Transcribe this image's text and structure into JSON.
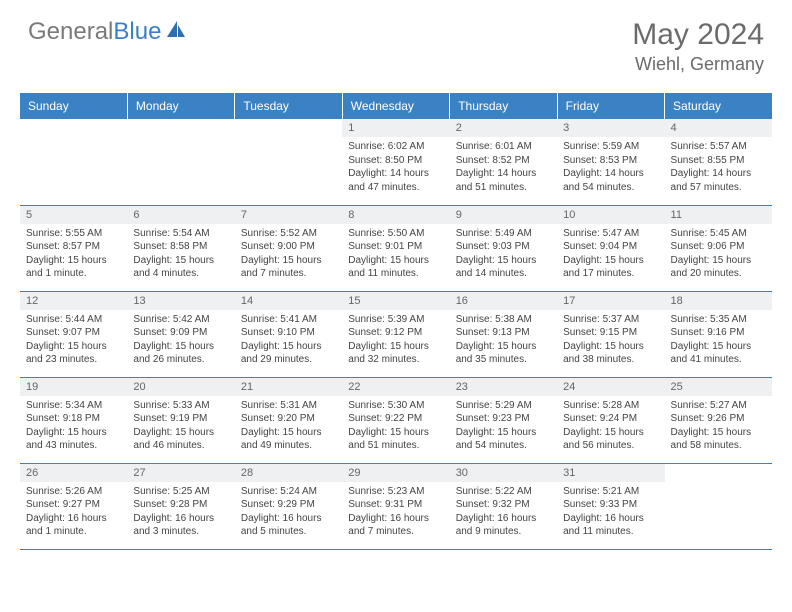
{
  "brand": {
    "part1": "General",
    "part2": "Blue"
  },
  "title": "May 2024",
  "location": "Wiehl, Germany",
  "colors": {
    "header_bg": "#3b82c4",
    "header_text": "#ffffff",
    "daynum_bg": "#eef0f2",
    "border": "#3b82c4",
    "body_text": "#444444",
    "title_text": "#6b6b6b"
  },
  "weekdays": [
    "Sunday",
    "Monday",
    "Tuesday",
    "Wednesday",
    "Thursday",
    "Friday",
    "Saturday"
  ],
  "startOffset": 3,
  "days": [
    {
      "n": 1,
      "sr": "6:02 AM",
      "ss": "8:50 PM",
      "dl": "14 hours and 47 minutes."
    },
    {
      "n": 2,
      "sr": "6:01 AM",
      "ss": "8:52 PM",
      "dl": "14 hours and 51 minutes."
    },
    {
      "n": 3,
      "sr": "5:59 AM",
      "ss": "8:53 PM",
      "dl": "14 hours and 54 minutes."
    },
    {
      "n": 4,
      "sr": "5:57 AM",
      "ss": "8:55 PM",
      "dl": "14 hours and 57 minutes."
    },
    {
      "n": 5,
      "sr": "5:55 AM",
      "ss": "8:57 PM",
      "dl": "15 hours and 1 minute."
    },
    {
      "n": 6,
      "sr": "5:54 AM",
      "ss": "8:58 PM",
      "dl": "15 hours and 4 minutes."
    },
    {
      "n": 7,
      "sr": "5:52 AM",
      "ss": "9:00 PM",
      "dl": "15 hours and 7 minutes."
    },
    {
      "n": 8,
      "sr": "5:50 AM",
      "ss": "9:01 PM",
      "dl": "15 hours and 11 minutes."
    },
    {
      "n": 9,
      "sr": "5:49 AM",
      "ss": "9:03 PM",
      "dl": "15 hours and 14 minutes."
    },
    {
      "n": 10,
      "sr": "5:47 AM",
      "ss": "9:04 PM",
      "dl": "15 hours and 17 minutes."
    },
    {
      "n": 11,
      "sr": "5:45 AM",
      "ss": "9:06 PM",
      "dl": "15 hours and 20 minutes."
    },
    {
      "n": 12,
      "sr": "5:44 AM",
      "ss": "9:07 PM",
      "dl": "15 hours and 23 minutes."
    },
    {
      "n": 13,
      "sr": "5:42 AM",
      "ss": "9:09 PM",
      "dl": "15 hours and 26 minutes."
    },
    {
      "n": 14,
      "sr": "5:41 AM",
      "ss": "9:10 PM",
      "dl": "15 hours and 29 minutes."
    },
    {
      "n": 15,
      "sr": "5:39 AM",
      "ss": "9:12 PM",
      "dl": "15 hours and 32 minutes."
    },
    {
      "n": 16,
      "sr": "5:38 AM",
      "ss": "9:13 PM",
      "dl": "15 hours and 35 minutes."
    },
    {
      "n": 17,
      "sr": "5:37 AM",
      "ss": "9:15 PM",
      "dl": "15 hours and 38 minutes."
    },
    {
      "n": 18,
      "sr": "5:35 AM",
      "ss": "9:16 PM",
      "dl": "15 hours and 41 minutes."
    },
    {
      "n": 19,
      "sr": "5:34 AM",
      "ss": "9:18 PM",
      "dl": "15 hours and 43 minutes."
    },
    {
      "n": 20,
      "sr": "5:33 AM",
      "ss": "9:19 PM",
      "dl": "15 hours and 46 minutes."
    },
    {
      "n": 21,
      "sr": "5:31 AM",
      "ss": "9:20 PM",
      "dl": "15 hours and 49 minutes."
    },
    {
      "n": 22,
      "sr": "5:30 AM",
      "ss": "9:22 PM",
      "dl": "15 hours and 51 minutes."
    },
    {
      "n": 23,
      "sr": "5:29 AM",
      "ss": "9:23 PM",
      "dl": "15 hours and 54 minutes."
    },
    {
      "n": 24,
      "sr": "5:28 AM",
      "ss": "9:24 PM",
      "dl": "15 hours and 56 minutes."
    },
    {
      "n": 25,
      "sr": "5:27 AM",
      "ss": "9:26 PM",
      "dl": "15 hours and 58 minutes."
    },
    {
      "n": 26,
      "sr": "5:26 AM",
      "ss": "9:27 PM",
      "dl": "16 hours and 1 minute."
    },
    {
      "n": 27,
      "sr": "5:25 AM",
      "ss": "9:28 PM",
      "dl": "16 hours and 3 minutes."
    },
    {
      "n": 28,
      "sr": "5:24 AM",
      "ss": "9:29 PM",
      "dl": "16 hours and 5 minutes."
    },
    {
      "n": 29,
      "sr": "5:23 AM",
      "ss": "9:31 PM",
      "dl": "16 hours and 7 minutes."
    },
    {
      "n": 30,
      "sr": "5:22 AM",
      "ss": "9:32 PM",
      "dl": "16 hours and 9 minutes."
    },
    {
      "n": 31,
      "sr": "5:21 AM",
      "ss": "9:33 PM",
      "dl": "16 hours and 11 minutes."
    }
  ],
  "labels": {
    "sunrise": "Sunrise:",
    "sunset": "Sunset:",
    "daylight": "Daylight:"
  }
}
